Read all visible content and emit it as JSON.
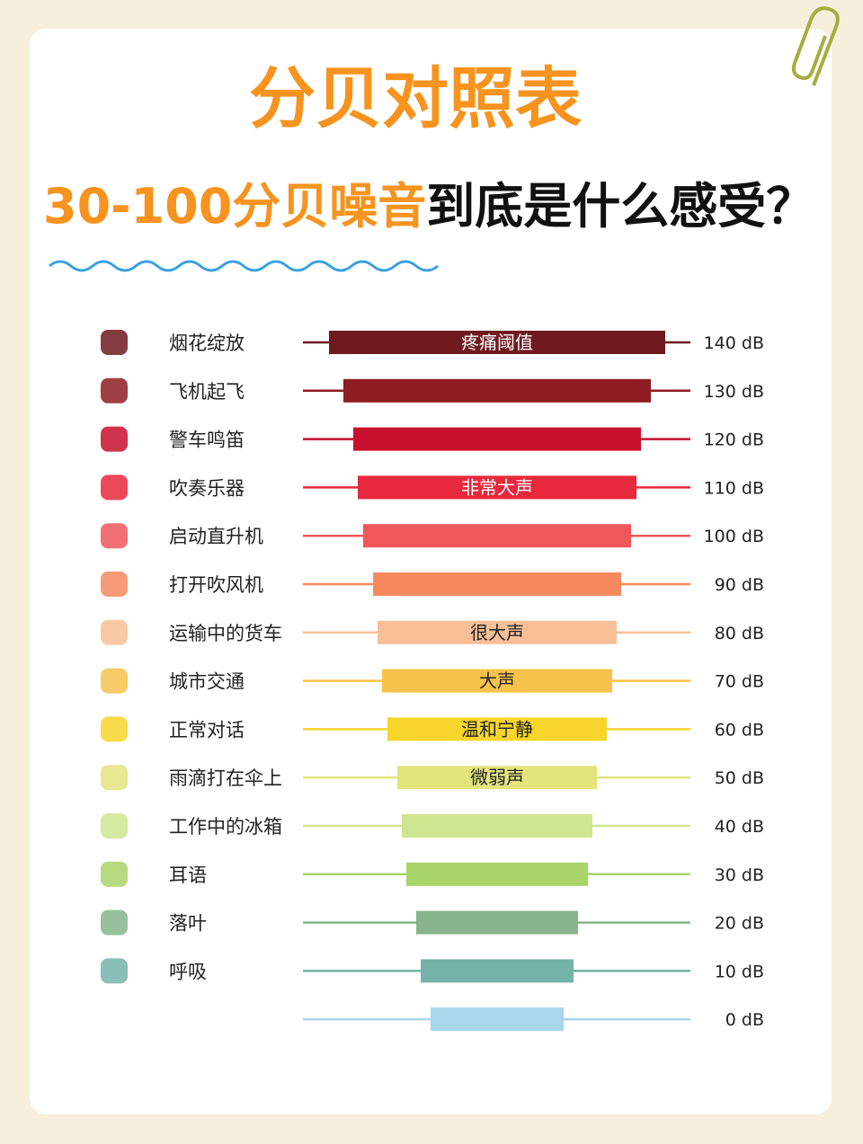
{
  "header": {
    "title": "分贝对照表",
    "subtitle_highlight": "30-100分贝噪音",
    "subtitle_rest": "到底是什么感受？"
  },
  "rows": [
    {
      "label": "烟花绽放",
      "bar_text": "疼痛阈值",
      "db": "140 dB",
      "color": "#6e1a1f"
    },
    {
      "label": "飞机起飞",
      "db": "130 dB",
      "color": "#8e1c22"
    },
    {
      "label": "警车鸣笛",
      "db": "120 dB",
      "color": "#c8102e"
    },
    {
      "label": "吹奏乐器",
      "bar_text": "非常大声",
      "db": "110 dB",
      "color": "#e8283c"
    },
    {
      "label": "启动直升机",
      "db": "100 dB",
      "color": "#f0575a"
    },
    {
      "label": "打开吹风机",
      "db": "90 dB",
      "color": "#f68a5e"
    },
    {
      "label": "运输中的货车",
      "bar_text": "很大声",
      "db": "80 dB",
      "color": "#f8bf97"
    },
    {
      "label": "城市交通",
      "bar_text": "大声",
      "db": "70 dB",
      "color": "#f6c24a"
    },
    {
      "label": "正常对话",
      "bar_text": "温和宁静",
      "db": "60 dB",
      "color": "#f7d52a"
    },
    {
      "label": "雨滴打在伞上",
      "bar_text": "微弱声",
      "db": "50 dB",
      "color": "#e3e47c"
    },
    {
      "label": "工作中的冰箱",
      "db": "40 dB",
      "color": "#cfe58f"
    },
    {
      "label": "耳语",
      "db": "30 dB",
      "color": "#a8d468"
    },
    {
      "label": "落叶",
      "db": "20 dB",
      "color": "#86b58c"
    },
    {
      "label": "呼吸",
      "db": "10 dB",
      "color": "#75b3a9"
    },
    {
      "db": "0 dB",
      "color": "#a9d6ea"
    }
  ]
}
